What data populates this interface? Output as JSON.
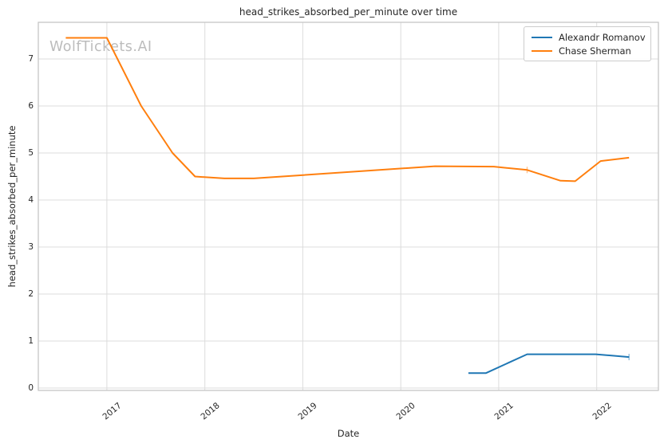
{
  "watermark": "WolfTickets.AI",
  "chart_data": {
    "type": "line",
    "title": "head_strikes_absorbed_per_minute over time",
    "xlabel": "Date",
    "ylabel": "head_strikes_absorbed_per_minute",
    "xlim": [
      2016.3,
      2022.63
    ],
    "ylim": [
      -0.05,
      7.78
    ],
    "x_ticks": [
      2017,
      2018,
      2019,
      2020,
      2021,
      2022
    ],
    "y_ticks": [
      0,
      1,
      2,
      3,
      4,
      5,
      6,
      7
    ],
    "grid": true,
    "legend_position": "upper right",
    "colors": {
      "grid": "#dcdcdc",
      "spine": "#c2c2c2",
      "text": "#262626",
      "watermark": "#bcbcbc"
    },
    "series": [
      {
        "name": "Alexandr Romanov",
        "color": "#1f77b4",
        "points": [
          [
            2020.69,
            0.32
          ],
          [
            2020.87,
            0.32
          ],
          [
            2021.29,
            0.72
          ],
          [
            2021.99,
            0.72
          ],
          [
            2022.33,
            0.66
          ]
        ],
        "tick_marker_points": [
          [
            2022.33,
            0.66
          ]
        ]
      },
      {
        "name": "Chase Sherman",
        "color": "#ff7f0e",
        "points": [
          [
            2016.58,
            7.45
          ],
          [
            2017.0,
            7.45
          ],
          [
            2017.35,
            6.0
          ],
          [
            2017.67,
            5.0
          ],
          [
            2017.9,
            4.5
          ],
          [
            2018.2,
            4.46
          ],
          [
            2018.5,
            4.46
          ],
          [
            2020.35,
            4.72
          ],
          [
            2020.95,
            4.71
          ],
          [
            2021.29,
            4.64
          ],
          [
            2021.63,
            4.41
          ],
          [
            2021.78,
            4.4
          ],
          [
            2022.04,
            4.83
          ],
          [
            2022.33,
            4.9
          ]
        ],
        "tick_marker_points": [
          [
            2021.29,
            4.64
          ]
        ]
      }
    ]
  }
}
